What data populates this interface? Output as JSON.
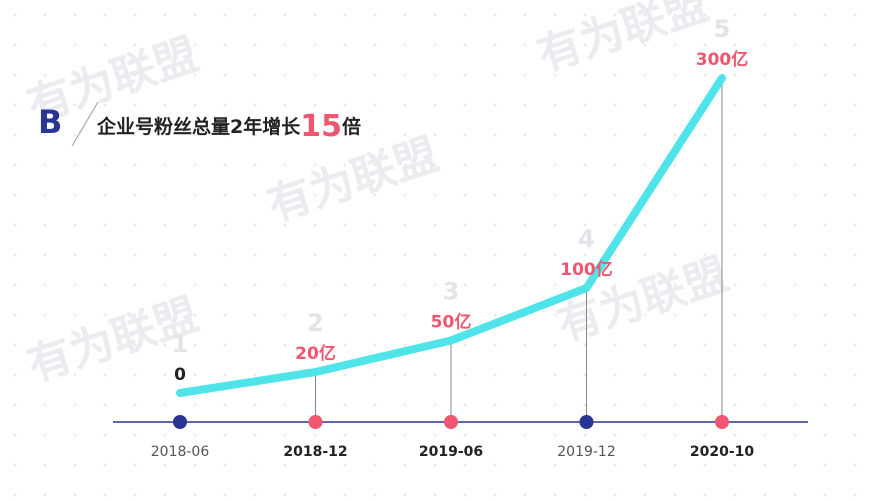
{
  "badge": "B",
  "watermark": "有为联盟",
  "chart_data": {
    "type": "line",
    "title": {
      "before": "企业号粉丝总量2年增长",
      "highlight": "15",
      "after": "倍"
    },
    "categories": [
      "2018-06",
      "2018-12",
      "2019-06",
      "2019-12",
      "2020-10"
    ],
    "step_labels": [
      "1",
      "2",
      "3",
      "4",
      "5"
    ],
    "values": [
      0,
      20,
      50,
      100,
      300
    ],
    "value_labels": [
      "0",
      "20亿",
      "50亿",
      "100亿",
      "300亿"
    ],
    "color": "#4fe4ea",
    "dot_colors": [
      "#283593",
      "#f0566f",
      "#f0566f",
      "#283593",
      "#f0566f"
    ],
    "axis_color": "#283593",
    "highlight_color": "#f0566f"
  }
}
